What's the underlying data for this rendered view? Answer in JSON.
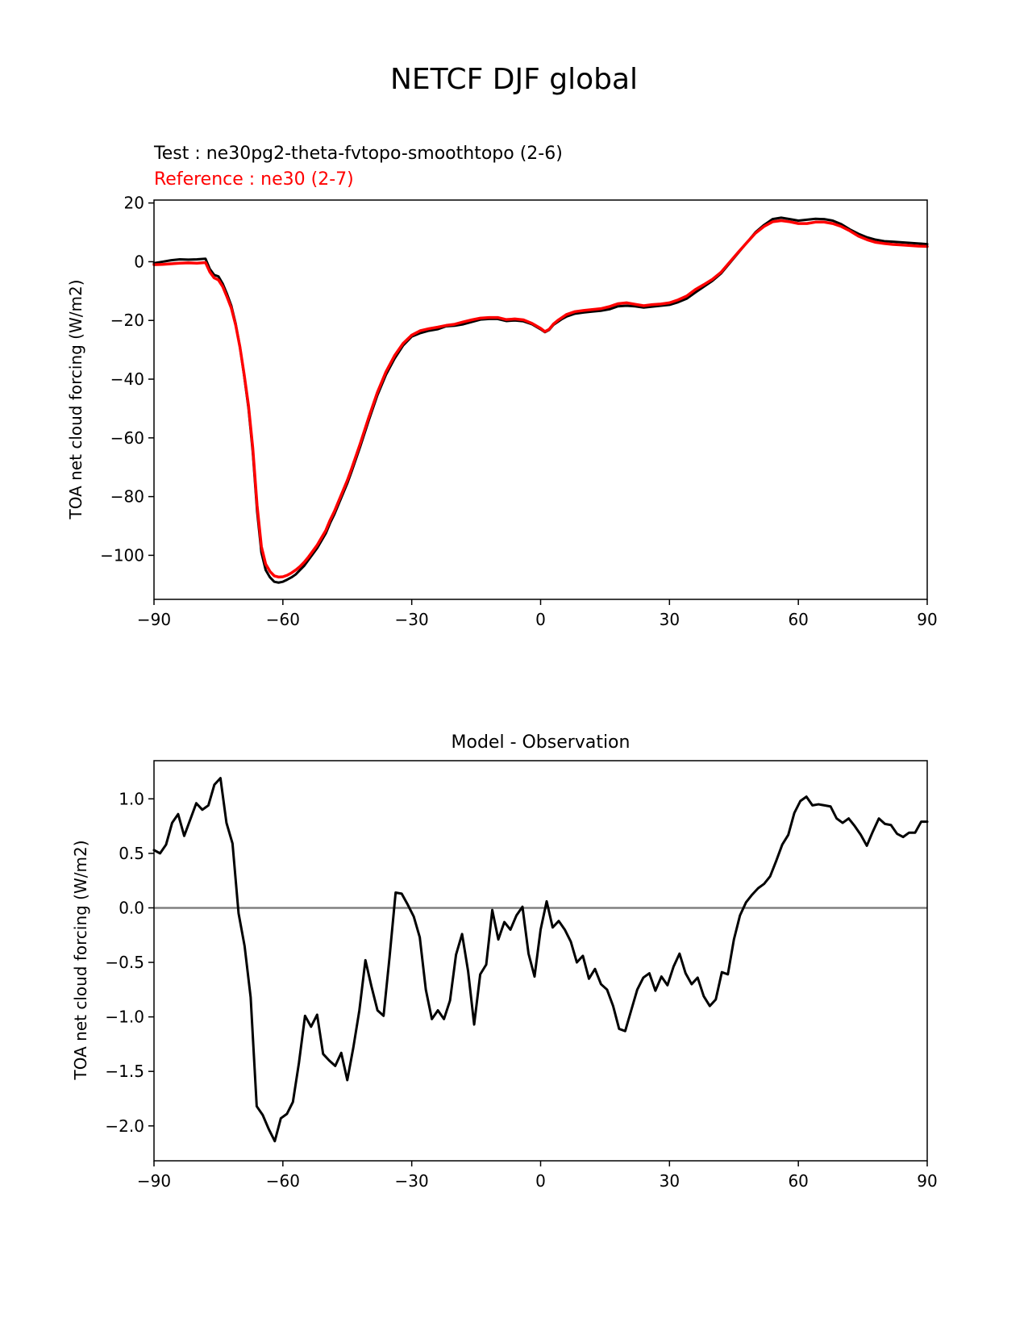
{
  "figure": {
    "title": "NETCF DJF global"
  },
  "chart_data": [
    {
      "type": "line",
      "title_lines": [
        {
          "text": "Test : ne30pg2-theta-fvtopo-smoothtopo (2-6)",
          "color": "#000000"
        },
        {
          "text": "Reference : ne30 (2-7)",
          "color": "#ff0000"
        }
      ],
      "xlabel": "",
      "ylabel": "TOA net cloud forcing (W/m2)",
      "xlim": [
        -90,
        90
      ],
      "ylim": [
        -115,
        21
      ],
      "xticks": [
        -90,
        -60,
        -30,
        0,
        30,
        60,
        90
      ],
      "xtick_labels": [
        "−90",
        "−60",
        "−30",
        "0",
        "30",
        "60",
        "90"
      ],
      "yticks": [
        20,
        0,
        -20,
        -40,
        -60,
        -80,
        -100
      ],
      "ytick_labels": [
        "20",
        "0",
        "−20",
        "−40",
        "−60",
        "−80",
        "−100"
      ],
      "grid": false,
      "series": [
        {
          "name": "Test : ne30pg2-theta-fvtopo-smoothtopo (2-6)",
          "color": "#000000",
          "x": [
            -90,
            -88,
            -86,
            -84,
            -82,
            -80,
            -78,
            -77,
            -76,
            -75,
            -74,
            -73,
            -72,
            -71,
            -70,
            -69,
            -68,
            -67,
            -66,
            -65,
            -64,
            -63,
            -62,
            -61,
            -60,
            -59,
            -58,
            -57,
            -56,
            -55,
            -54,
            -53,
            -52,
            -51,
            -50,
            -49,
            -48,
            -47,
            -46,
            -45,
            -44,
            -42,
            -40,
            -38,
            -36,
            -34,
            -32,
            -30,
            -28,
            -26,
            -24,
            -22,
            -20,
            -18,
            -16,
            -14,
            -12,
            -10,
            -8,
            -6,
            -4,
            -2,
            0,
            1,
            2,
            3,
            4,
            5,
            6,
            8,
            10,
            12,
            14,
            16,
            18,
            20,
            22,
            24,
            26,
            28,
            30,
            32,
            34,
            36,
            38,
            40,
            42,
            44,
            46,
            48,
            50,
            52,
            54,
            56,
            58,
            60,
            62,
            64,
            66,
            68,
            70,
            72,
            74,
            76,
            78,
            80,
            82,
            84,
            86,
            88,
            90
          ],
          "y": [
            -0.5,
            0.0,
            0.5,
            0.8,
            0.7,
            0.8,
            1.0,
            -2.5,
            -4.5,
            -5.0,
            -7.5,
            -11.0,
            -15.0,
            -21.0,
            -29.0,
            -39.0,
            -50.0,
            -65.0,
            -85.0,
            -99.0,
            -105.0,
            -107.5,
            -109.0,
            -109.3,
            -109.0,
            -108.3,
            -107.5,
            -106.5,
            -105.0,
            -103.5,
            -101.5,
            -99.5,
            -97.5,
            -95.0,
            -92.5,
            -89.0,
            -86.0,
            -82.5,
            -79.0,
            -75.5,
            -71.5,
            -63.0,
            -54.0,
            -45.5,
            -38.5,
            -33.0,
            -28.5,
            -25.5,
            -24.3,
            -23.5,
            -23.0,
            -22.0,
            -21.8,
            -21.3,
            -20.5,
            -19.7,
            -19.5,
            -19.5,
            -20.2,
            -20.0,
            -20.3,
            -21.3,
            -23.0,
            -24.0,
            -23.2,
            -21.5,
            -20.5,
            -19.5,
            -18.7,
            -17.7,
            -17.3,
            -17.0,
            -16.7,
            -16.2,
            -15.2,
            -15.0,
            -15.2,
            -15.6,
            -15.3,
            -15.0,
            -14.7,
            -13.8,
            -12.6,
            -10.5,
            -8.5,
            -6.5,
            -4.0,
            -0.5,
            3.0,
            6.5,
            10.0,
            12.5,
            14.5,
            15.0,
            14.5,
            14.0,
            14.3,
            14.6,
            14.5,
            14.0,
            12.8,
            11.0,
            9.5,
            8.3,
            7.5,
            7.0,
            6.8,
            6.6,
            6.4,
            6.2,
            6.0
          ]
        },
        {
          "name": "Reference : ne30 (2-7)",
          "color": "#ff0000",
          "x": [
            -90,
            -88,
            -86,
            -84,
            -82,
            -80,
            -78,
            -77,
            -76,
            -75,
            -74,
            -73,
            -72,
            -71,
            -70,
            -69,
            -68,
            -67,
            -66,
            -65,
            -64,
            -63,
            -62,
            -61,
            -60,
            -59,
            -58,
            -57,
            -56,
            -55,
            -54,
            -53,
            -52,
            -51,
            -50,
            -49,
            -48,
            -47,
            -46,
            -45,
            -44,
            -42,
            -40,
            -38,
            -36,
            -34,
            -32,
            -30,
            -28,
            -26,
            -24,
            -22,
            -20,
            -18,
            -16,
            -14,
            -12,
            -10,
            -8,
            -6,
            -4,
            -2,
            0,
            1,
            2,
            3,
            4,
            5,
            6,
            8,
            10,
            12,
            14,
            16,
            18,
            20,
            22,
            24,
            26,
            28,
            30,
            32,
            34,
            36,
            38,
            40,
            42,
            44,
            46,
            48,
            50,
            52,
            54,
            56,
            58,
            60,
            62,
            64,
            66,
            68,
            70,
            72,
            74,
            76,
            78,
            80,
            82,
            84,
            86,
            88,
            90
          ],
          "y": [
            -1.0,
            -0.9,
            -0.7,
            -0.5,
            -0.4,
            -0.5,
            -0.3,
            -3.5,
            -5.5,
            -6.2,
            -8.5,
            -12.0,
            -15.8,
            -21.5,
            -29.0,
            -38.5,
            -49.0,
            -63.5,
            -83.0,
            -97.0,
            -103.0,
            -105.5,
            -107.0,
            -107.4,
            -107.3,
            -106.8,
            -106.0,
            -105.0,
            -103.8,
            -102.3,
            -100.5,
            -98.5,
            -96.5,
            -94.0,
            -91.5,
            -88.0,
            -85.0,
            -81.5,
            -78.0,
            -74.5,
            -70.5,
            -62.0,
            -53.0,
            -44.5,
            -37.5,
            -32.0,
            -27.8,
            -25.0,
            -23.5,
            -22.8,
            -22.3,
            -21.7,
            -21.3,
            -20.5,
            -19.8,
            -19.2,
            -19.0,
            -19.0,
            -19.7,
            -19.5,
            -19.8,
            -21.0,
            -22.7,
            -23.8,
            -23.0,
            -21.2,
            -20.0,
            -19.0,
            -18.0,
            -17.0,
            -16.6,
            -16.3,
            -16.0,
            -15.3,
            -14.3,
            -14.0,
            -14.5,
            -15.0,
            -14.6,
            -14.4,
            -14.0,
            -13.0,
            -11.7,
            -9.5,
            -7.8,
            -6.0,
            -3.6,
            -0.2,
            3.2,
            6.5,
            9.7,
            12.0,
            13.6,
            14.0,
            13.6,
            13.0,
            13.0,
            13.5,
            13.5,
            13.0,
            12.0,
            10.5,
            8.7,
            7.5,
            6.6,
            6.2,
            5.9,
            5.7,
            5.5,
            5.3,
            5.2
          ]
        }
      ]
    },
    {
      "type": "line",
      "title": "Model - Observation",
      "xlabel": "",
      "ylabel": "TOA net cloud forcing (W/m2)",
      "xlim": [
        -90,
        90
      ],
      "ylim": [
        -2.32,
        1.35
      ],
      "xticks": [
        -90,
        -60,
        -30,
        0,
        30,
        60,
        90
      ],
      "xtick_labels": [
        "−90",
        "−60",
        "−30",
        "0",
        "30",
        "60",
        "90"
      ],
      "yticks": [
        1.0,
        0.5,
        0.0,
        -0.5,
        -1.0,
        -1.5,
        -2.0
      ],
      "ytick_labels": [
        "1.0",
        "0.5",
        "0.0",
        "−0.5",
        "−1.0",
        "−1.5",
        "−2.0"
      ],
      "grid": false,
      "zero_line": {
        "y": 0,
        "color": "#808080"
      },
      "series": [
        {
          "name": "",
          "color": "#000000",
          "x": [
            -90.0,
            -88.59,
            -87.19,
            -85.78,
            -84.38,
            -82.97,
            -81.56,
            -80.16,
            -78.75,
            -77.34,
            -75.94,
            -74.53,
            -73.13,
            -71.72,
            -70.31,
            -68.91,
            -67.5,
            -66.09,
            -64.69,
            -63.28,
            -61.88,
            -60.47,
            -59.06,
            -57.66,
            -56.25,
            -54.84,
            -53.44,
            -52.03,
            -50.63,
            -49.22,
            -47.81,
            -46.41,
            -45.0,
            -43.59,
            -42.19,
            -40.78,
            -39.38,
            -37.97,
            -36.56,
            -35.16,
            -33.75,
            -32.34,
            -30.94,
            -29.53,
            -28.13,
            -26.72,
            -25.31,
            -23.91,
            -22.5,
            -21.09,
            -19.69,
            -18.28,
            -16.88,
            -15.47,
            -14.06,
            -12.66,
            -11.25,
            -9.84,
            -8.44,
            -7.03,
            -5.63,
            -4.22,
            -2.81,
            -1.41,
            0.0,
            1.41,
            2.81,
            4.22,
            5.63,
            7.03,
            8.44,
            9.84,
            11.25,
            12.66,
            14.06,
            15.47,
            16.88,
            18.28,
            19.69,
            21.09,
            22.5,
            23.91,
            25.31,
            26.72,
            28.13,
            29.53,
            30.94,
            32.34,
            33.75,
            35.16,
            36.56,
            37.97,
            39.38,
            40.78,
            42.19,
            43.59,
            45.0,
            46.41,
            47.81,
            49.22,
            50.63,
            52.03,
            53.44,
            54.84,
            56.25,
            57.66,
            59.06,
            60.47,
            61.88,
            63.28,
            64.69,
            66.09,
            67.5,
            68.91,
            70.31,
            71.72,
            73.13,
            74.53,
            75.94,
            77.34,
            78.75,
            80.16,
            81.56,
            82.97,
            84.38,
            85.78,
            87.19,
            88.59,
            90.0
          ],
          "y": [
            0.53,
            0.5,
            0.58,
            0.78,
            0.86,
            0.66,
            0.81,
            0.96,
            0.9,
            0.94,
            1.13,
            1.19,
            0.78,
            0.59,
            -0.05,
            -0.35,
            -0.82,
            -1.82,
            -1.9,
            -2.03,
            -2.14,
            -1.93,
            -1.89,
            -1.78,
            -1.42,
            -0.99,
            -1.09,
            -0.98,
            -1.34,
            -1.4,
            -1.45,
            -1.33,
            -1.58,
            -1.28,
            -0.94,
            -0.48,
            -0.72,
            -0.94,
            -0.99,
            -0.45,
            0.14,
            0.13,
            0.03,
            -0.08,
            -0.27,
            -0.75,
            -1.02,
            -0.94,
            -1.02,
            -0.85,
            -0.43,
            -0.24,
            -0.58,
            -1.07,
            -0.61,
            -0.52,
            -0.02,
            -0.29,
            -0.13,
            -0.2,
            -0.07,
            0.01,
            -0.42,
            -0.63,
            -0.2,
            0.06,
            -0.18,
            -0.12,
            -0.2,
            -0.31,
            -0.5,
            -0.44,
            -0.65,
            -0.56,
            -0.7,
            -0.75,
            -0.9,
            -1.11,
            -1.13,
            -0.94,
            -0.75,
            -0.64,
            -0.6,
            -0.76,
            -0.63,
            -0.71,
            -0.54,
            -0.42,
            -0.6,
            -0.7,
            -0.64,
            -0.81,
            -0.9,
            -0.84,
            -0.59,
            -0.61,
            -0.29,
            -0.07,
            0.05,
            0.12,
            0.18,
            0.22,
            0.29,
            0.43,
            0.58,
            0.67,
            0.87,
            0.98,
            1.02,
            0.94,
            0.95,
            0.94,
            0.93,
            0.82,
            0.78,
            0.82,
            0.75,
            0.67,
            0.57,
            0.7,
            0.82,
            0.77,
            0.76,
            0.68,
            0.65,
            0.69,
            0.69,
            0.79,
            0.79
          ]
        }
      ]
    }
  ]
}
